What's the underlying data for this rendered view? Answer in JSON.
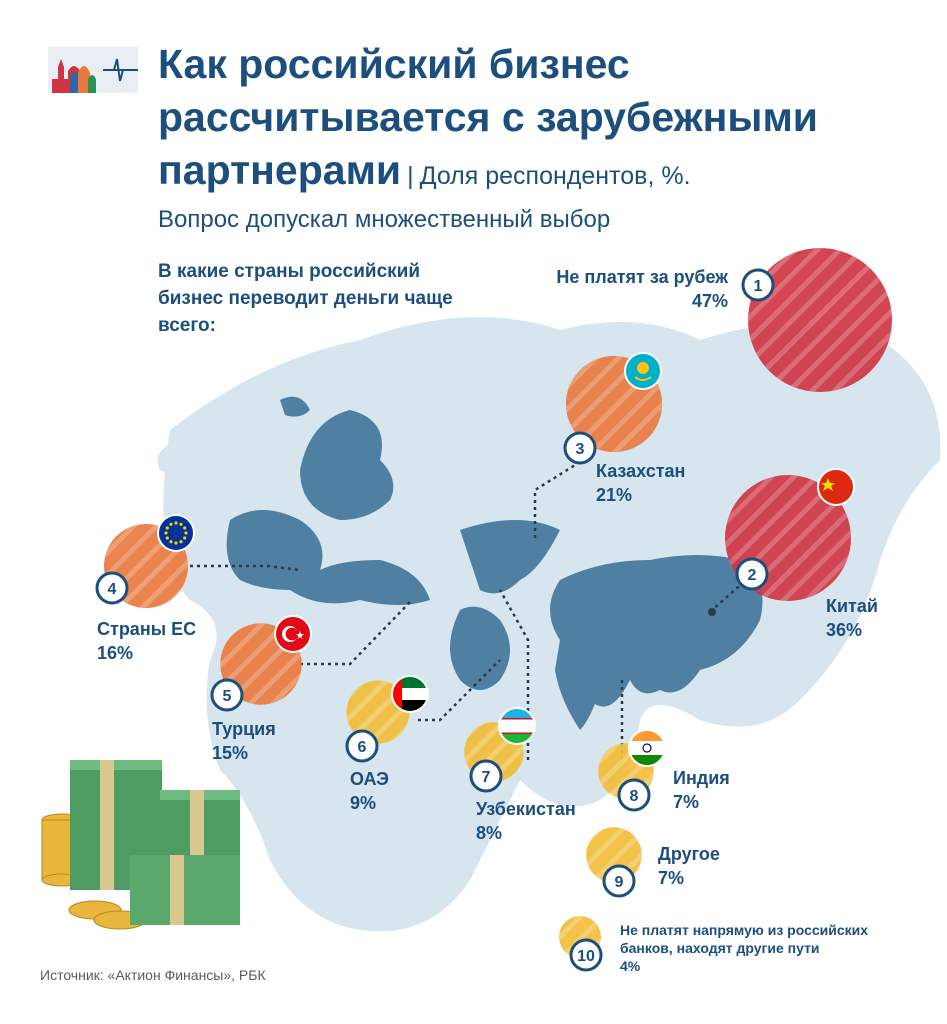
{
  "header": {
    "title": "Как российский бизнес рассчитывается с зарубежными партнерами",
    "separator": "|",
    "subtitle": "Доля респондентов, %.",
    "note": "Вопрос допускал множественный выбор"
  },
  "question": "В какие страны российский бизнес переводит деньги чаще всего:",
  "source": "Источник: «Актион Финансы», РБК",
  "colors": {
    "title": "#1c4e7e",
    "map": "#4f7fa1",
    "map_light": "#d6e5ee",
    "red": "#cf3543",
    "orange": "#e8793f",
    "yellow": "#f1bd3a"
  },
  "chart_data": {
    "type": "bubble",
    "unit": "%",
    "items": [
      {
        "rank": "1",
        "name": "Не платят за рубеж",
        "value": 47,
        "value_label": "47%",
        "flag": "none"
      },
      {
        "rank": "2",
        "name": "Китай",
        "value": 36,
        "value_label": "36%",
        "flag": "china-flag"
      },
      {
        "rank": "3",
        "name": "Казахстан",
        "value": 21,
        "value_label": "21%",
        "flag": "kazakhstan-flag"
      },
      {
        "rank": "4",
        "name": "Страны ЕС",
        "value": 16,
        "value_label": "16%",
        "flag": "eu-flag"
      },
      {
        "rank": "5",
        "name": "Турция",
        "value": 15,
        "value_label": "15%",
        "flag": "turkey-flag"
      },
      {
        "rank": "6",
        "name": "ОАЭ",
        "value": 9,
        "value_label": "9%",
        "flag": "uae-flag"
      },
      {
        "rank": "7",
        "name": "Узбекистан",
        "value": 8,
        "value_label": "8%",
        "flag": "uzbekistan-flag"
      },
      {
        "rank": "8",
        "name": "Индия",
        "value": 7,
        "value_label": "7%",
        "flag": "india-flag"
      },
      {
        "rank": "9",
        "name": "Другое",
        "value": 7,
        "value_label": "7%",
        "flag": "none"
      },
      {
        "rank": "10",
        "name": "Не платят напрямую из российских банков, находят другие пути",
        "value": 4,
        "value_label": "4%",
        "flag": "none"
      }
    ]
  }
}
